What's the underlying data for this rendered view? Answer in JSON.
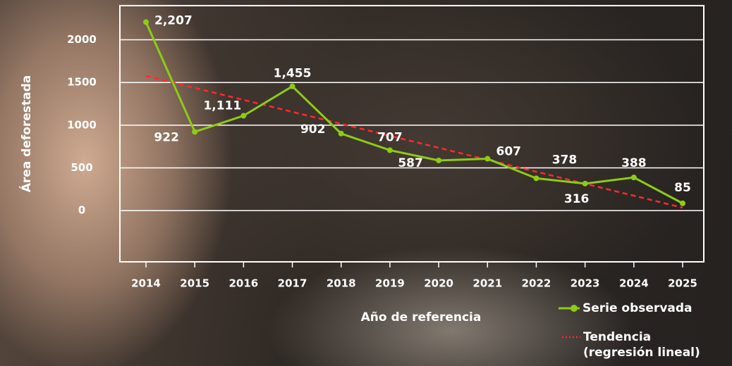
{
  "chart_data": {
    "type": "line",
    "categories": [
      "2014",
      "2015",
      "2016",
      "2017",
      "2018",
      "2019",
      "2020",
      "2021",
      "2022",
      "2023",
      "2024",
      "2025"
    ],
    "series": [
      {
        "name": "Serie observada",
        "color": "#8ccc14",
        "values": [
          2207,
          922,
          1111,
          1455,
          902,
          707,
          587,
          607,
          378,
          316,
          388,
          85
        ],
        "value_labels": [
          "2,207",
          "922",
          "1,111",
          "1,455",
          "902",
          "707",
          "587",
          "607",
          "378",
          "316",
          "388",
          "85"
        ]
      }
    ],
    "trendline": {
      "name": "Tendencia (regresión lineal)",
      "color": "#ff2a2a",
      "method": "linear",
      "style": "dotted"
    },
    "xlabel": "Año de referencia",
    "ylabel": "Área deforestada",
    "ylim": [
      -600,
      2400
    ],
    "yticks": [
      0,
      500,
      1000,
      1500,
      2000
    ],
    "grid": true
  }
}
